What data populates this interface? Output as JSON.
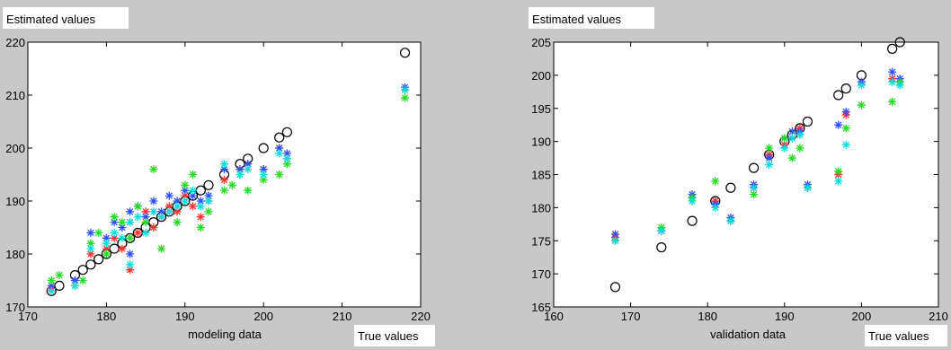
{
  "chart_data": [
    {
      "type": "scatter",
      "ylabel": "Estimated values",
      "xlabel": "modeling data",
      "corner_label": "True values",
      "xlim": [
        170,
        220
      ],
      "ylim": [
        170,
        220
      ],
      "xticks": [
        170,
        180,
        190,
        200,
        210,
        220
      ],
      "yticks": [
        170,
        180,
        190,
        200,
        210,
        220
      ],
      "series": [
        {
          "marker": "circle",
          "color": "#000000",
          "points": [
            [
              173,
              173
            ],
            [
              174,
              174
            ],
            [
              176,
              176
            ],
            [
              177,
              177
            ],
            [
              178,
              178
            ],
            [
              179,
              179
            ],
            [
              180,
              180
            ],
            [
              181,
              181
            ],
            [
              182,
              182
            ],
            [
              183,
              183
            ],
            [
              184,
              184
            ],
            [
              185,
              185
            ],
            [
              186,
              186
            ],
            [
              187,
              187
            ],
            [
              188,
              188
            ],
            [
              189,
              189
            ],
            [
              190,
              190
            ],
            [
              191,
              191
            ],
            [
              192,
              192
            ],
            [
              193,
              193
            ],
            [
              195,
              195
            ],
            [
              197,
              197
            ],
            [
              198,
              198
            ],
            [
              200,
              200
            ],
            [
              202,
              202
            ],
            [
              203,
              203
            ],
            [
              218,
              218
            ]
          ]
        },
        {
          "marker": "star",
          "color": "#ff3030",
          "points": [
            [
              173,
              173.5
            ],
            [
              176,
              175
            ],
            [
              178,
              180
            ],
            [
              180,
              181
            ],
            [
              181,
              183
            ],
            [
              182,
              181
            ],
            [
              183,
              177
            ],
            [
              183,
              186
            ],
            [
              184,
              184
            ],
            [
              185,
              188
            ],
            [
              186,
              185
            ],
            [
              187,
              187
            ],
            [
              188,
              189
            ],
            [
              189,
              188
            ],
            [
              190,
              191
            ],
            [
              191,
              189
            ],
            [
              192,
              187
            ],
            [
              193,
              190
            ],
            [
              195,
              194
            ],
            [
              197,
              196
            ],
            [
              198,
              197
            ],
            [
              200,
              196
            ],
            [
              202,
              200
            ],
            [
              203,
              198
            ],
            [
              218,
              211
            ]
          ]
        },
        {
          "marker": "star",
          "color": "#3050ff",
          "points": [
            [
              173,
              174
            ],
            [
              176,
              175
            ],
            [
              178,
              184
            ],
            [
              180,
              183
            ],
            [
              181,
              186
            ],
            [
              182,
              185
            ],
            [
              183,
              180
            ],
            [
              183,
              188
            ],
            [
              184,
              189
            ],
            [
              185,
              187
            ],
            [
              186,
              190
            ],
            [
              187,
              188
            ],
            [
              188,
              191
            ],
            [
              189,
              190
            ],
            [
              190,
              192
            ],
            [
              191,
              191
            ],
            [
              192,
              190
            ],
            [
              193,
              191
            ],
            [
              195,
              196
            ],
            [
              197,
              196
            ],
            [
              198,
              197
            ],
            [
              200,
              196
            ],
            [
              202,
              200
            ],
            [
              203,
              199
            ],
            [
              218,
              211.5
            ]
          ]
        },
        {
          "marker": "star",
          "color": "#22dd22",
          "points": [
            [
              173,
              175
            ],
            [
              174,
              176
            ],
            [
              176,
              174
            ],
            [
              177,
              175
            ],
            [
              178,
              182
            ],
            [
              179,
              184
            ],
            [
              180,
              180
            ],
            [
              181,
              187
            ],
            [
              182,
              186
            ],
            [
              183,
              183
            ],
            [
              184,
              189
            ],
            [
              185,
              186
            ],
            [
              186,
              196
            ],
            [
              187,
              181
            ],
            [
              188,
              188
            ],
            [
              189,
              186
            ],
            [
              190,
              193
            ],
            [
              191,
              195
            ],
            [
              192,
              185
            ],
            [
              193,
              188
            ],
            [
              195,
              192
            ],
            [
              196,
              193
            ],
            [
              197,
              195
            ],
            [
              198,
              192
            ],
            [
              200,
              194
            ],
            [
              202,
              195
            ],
            [
              203,
              197
            ],
            [
              218,
              209.5
            ]
          ]
        },
        {
          "marker": "star",
          "color": "#00dddd",
          "points": [
            [
              173,
              173
            ],
            [
              176,
              174
            ],
            [
              178,
              181
            ],
            [
              180,
              182
            ],
            [
              181,
              184
            ],
            [
              182,
              183
            ],
            [
              183,
              178
            ],
            [
              183,
              186
            ],
            [
              184,
              187
            ],
            [
              185,
              184
            ],
            [
              186,
              188
            ],
            [
              187,
              187
            ],
            [
              188,
              188
            ],
            [
              189,
              189
            ],
            [
              190,
              190
            ],
            [
              191,
              192
            ],
            [
              192,
              189
            ],
            [
              193,
              190
            ],
            [
              195,
              197
            ],
            [
              197,
              195
            ],
            [
              198,
              196
            ],
            [
              200,
              195
            ],
            [
              202,
              199
            ],
            [
              203,
              198
            ],
            [
              218,
              211
            ]
          ]
        }
      ]
    },
    {
      "type": "scatter",
      "ylabel": "Estimated values",
      "xlabel": "validation data",
      "corner_label": "True values",
      "xlim": [
        160,
        210
      ],
      "ylim": [
        165,
        205
      ],
      "xticks": [
        160,
        170,
        180,
        190,
        200,
        210
      ],
      "yticks": [
        165,
        170,
        175,
        180,
        185,
        190,
        195,
        200,
        205
      ],
      "series": [
        {
          "marker": "circle",
          "color": "#000000",
          "points": [
            [
              168,
              168
            ],
            [
              174,
              174
            ],
            [
              178,
              178
            ],
            [
              181,
              181
            ],
            [
              183,
              183
            ],
            [
              186,
              186
            ],
            [
              188,
              188
            ],
            [
              190,
              190
            ],
            [
              191,
              191
            ],
            [
              192,
              192
            ],
            [
              193,
              193
            ],
            [
              197,
              197
            ],
            [
              198,
              198
            ],
            [
              200,
              200
            ],
            [
              204,
              204
            ],
            [
              205,
              205
            ]
          ]
        },
        {
          "marker": "star",
          "color": "#ff3030",
          "points": [
            [
              168,
              175.5
            ],
            [
              174,
              176.5
            ],
            [
              178,
              181.5
            ],
            [
              181,
              181
            ],
            [
              183,
              178
            ],
            [
              186,
              183
            ],
            [
              188,
              188
            ],
            [
              190,
              189.5
            ],
            [
              191,
              190.5
            ],
            [
              192,
              192
            ],
            [
              193,
              183
            ],
            [
              197,
              185
            ],
            [
              198,
              194
            ],
            [
              200,
              199
            ],
            [
              204,
              199.5
            ],
            [
              205,
              199
            ]
          ]
        },
        {
          "marker": "star",
          "color": "#3050ff",
          "points": [
            [
              168,
              176
            ],
            [
              174,
              176.5
            ],
            [
              178,
              182
            ],
            [
              181,
              180.5
            ],
            [
              183,
              178.5
            ],
            [
              186,
              183.5
            ],
            [
              188,
              187.5
            ],
            [
              190,
              190.5
            ],
            [
              191,
              191.5
            ],
            [
              192,
              191.5
            ],
            [
              193,
              183.5
            ],
            [
              197,
              192.5
            ],
            [
              198,
              194.5
            ],
            [
              200,
              199
            ],
            [
              204,
              200.5
            ],
            [
              205,
              199.5
            ]
          ]
        },
        {
          "marker": "star",
          "color": "#22dd22",
          "points": [
            [
              168,
              175
            ],
            [
              174,
              177
            ],
            [
              178,
              181.5
            ],
            [
              181,
              184
            ],
            [
              183,
              178
            ],
            [
              186,
              182
            ],
            [
              188,
              189
            ],
            [
              190,
              190.5
            ],
            [
              191,
              187.5
            ],
            [
              192,
              189
            ],
            [
              193,
              183
            ],
            [
              197,
              185.5
            ],
            [
              198,
              192
            ],
            [
              200,
              195.5
            ],
            [
              204,
              196
            ],
            [
              205,
              199
            ]
          ]
        },
        {
          "marker": "star",
          "color": "#00dddd",
          "points": [
            [
              168,
              175
            ],
            [
              174,
              176.5
            ],
            [
              178,
              181
            ],
            [
              181,
              180
            ],
            [
              183,
              178
            ],
            [
              186,
              183
            ],
            [
              188,
              186.5
            ],
            [
              190,
              189
            ],
            [
              191,
              190.5
            ],
            [
              192,
              191
            ],
            [
              193,
              183
            ],
            [
              197,
              184
            ],
            [
              198,
              189.5
            ],
            [
              200,
              198.5
            ],
            [
              204,
              199
            ],
            [
              205,
              198.5
            ]
          ]
        }
      ]
    }
  ]
}
